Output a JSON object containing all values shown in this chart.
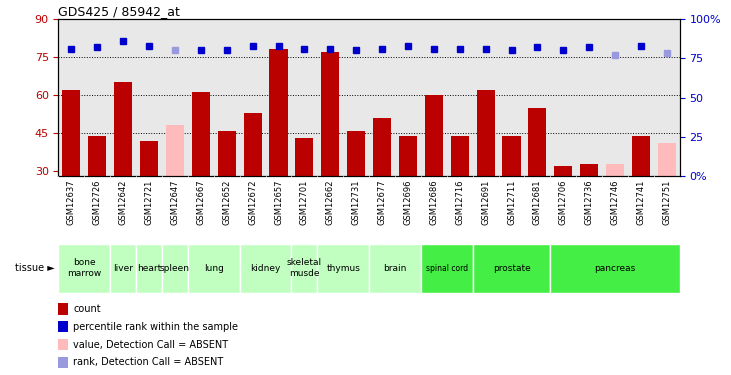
{
  "title": "GDS425 / 85942_at",
  "samples": [
    "GSM12637",
    "GSM12726",
    "GSM12642",
    "GSM12721",
    "GSM12647",
    "GSM12667",
    "GSM12652",
    "GSM12672",
    "GSM12657",
    "GSM12701",
    "GSM12662",
    "GSM12731",
    "GSM12677",
    "GSM12696",
    "GSM12686",
    "GSM12716",
    "GSM12691",
    "GSM12711",
    "GSM12681",
    "GSM12706",
    "GSM12736",
    "GSM12746",
    "GSM12741",
    "GSM12751"
  ],
  "count_values": [
    62,
    44,
    65,
    42,
    null,
    61,
    46,
    53,
    78,
    43,
    77,
    46,
    51,
    44,
    60,
    44,
    62,
    44,
    55,
    32,
    33,
    null,
    44,
    null
  ],
  "absent_count_values": [
    null,
    null,
    null,
    null,
    48,
    null,
    null,
    null,
    null,
    null,
    null,
    null,
    null,
    null,
    null,
    null,
    null,
    null,
    null,
    null,
    null,
    33,
    null,
    41
  ],
  "rank_values": [
    81,
    82,
    86,
    83,
    null,
    80,
    80,
    83,
    83,
    81,
    81,
    80,
    81,
    83,
    81,
    81,
    81,
    80,
    82,
    80,
    82,
    null,
    83,
    null
  ],
  "absent_rank_values": [
    null,
    null,
    null,
    null,
    80,
    null,
    null,
    null,
    null,
    null,
    null,
    null,
    null,
    null,
    null,
    null,
    null,
    null,
    null,
    null,
    null,
    77,
    null,
    78
  ],
  "tissue_groups": [
    {
      "label": "bone\nmarrow",
      "start": 0,
      "end": 2,
      "color": "#c0ffc0"
    },
    {
      "label": "liver",
      "start": 2,
      "end": 3,
      "color": "#c0ffc0"
    },
    {
      "label": "heart",
      "start": 3,
      "end": 4,
      "color": "#c0ffc0"
    },
    {
      "label": "spleen",
      "start": 4,
      "end": 5,
      "color": "#c0ffc0"
    },
    {
      "label": "lung",
      "start": 5,
      "end": 7,
      "color": "#c0ffc0"
    },
    {
      "label": "kidney",
      "start": 7,
      "end": 9,
      "color": "#c0ffc0"
    },
    {
      "label": "skeletal\nmusde",
      "start": 9,
      "end": 10,
      "color": "#c0ffc0"
    },
    {
      "label": "thymus",
      "start": 10,
      "end": 12,
      "color": "#c0ffc0"
    },
    {
      "label": "brain",
      "start": 12,
      "end": 14,
      "color": "#c0ffc0"
    },
    {
      "label": "spinal cord",
      "start": 14,
      "end": 16,
      "color": "#44ee44"
    },
    {
      "label": "prostate",
      "start": 16,
      "end": 19,
      "color": "#44ee44"
    },
    {
      "label": "pancreas",
      "start": 19,
      "end": 24,
      "color": "#44ee44"
    }
  ],
  "ylim_left": [
    28,
    90
  ],
  "ylim_right": [
    0,
    100
  ],
  "yticks_left": [
    30,
    45,
    60,
    75,
    90
  ],
  "yticks_right": [
    0,
    25,
    50,
    75,
    100
  ],
  "ytick_labels_right": [
    "0%",
    "25",
    "50",
    "75",
    "100%"
  ],
  "bar_color": "#bb0000",
  "absent_bar_color": "#ffbbbb",
  "rank_color": "#0000cc",
  "absent_rank_color": "#9999dd",
  "plot_bg_color": "#e8e8e8",
  "xticklabel_bg_color": "#d0d0d0",
  "grid_lines": [
    45,
    60,
    75
  ],
  "legend_items": [
    {
      "label": "count",
      "color": "#bb0000"
    },
    {
      "label": "percentile rank within the sample",
      "color": "#0000cc"
    },
    {
      "label": "value, Detection Call = ABSENT",
      "color": "#ffbbbb"
    },
    {
      "label": "rank, Detection Call = ABSENT",
      "color": "#9999dd"
    }
  ]
}
